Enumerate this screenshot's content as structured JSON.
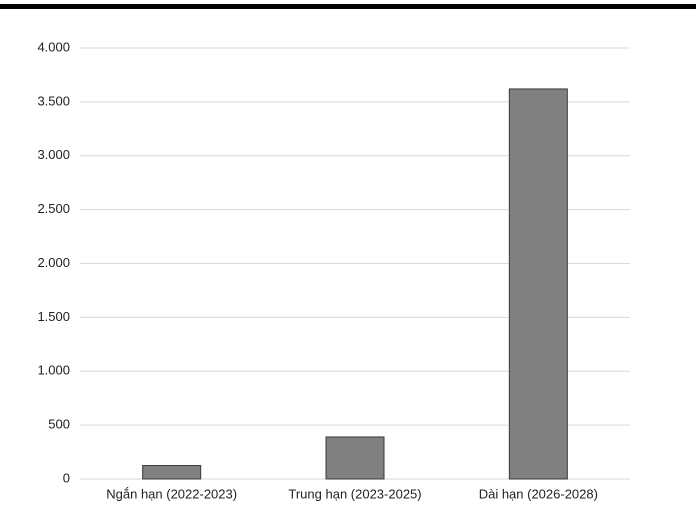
{
  "chart_data": {
    "type": "bar",
    "categories": [
      "Ngắn hạn (2022-2023)",
      "Trung hạn (2023-2025)",
      "Dài hạn (2026-2028)"
    ],
    "values": [
      125,
      390,
      3620
    ],
    "color": "#808080",
    "ylim": [
      0,
      4000
    ],
    "yticks": [
      0,
      500,
      {
        "value": 1000,
        "label": "1.000"
      },
      {
        "value": 1500,
        "label": "1.500"
      },
      {
        "value": 2000,
        "label": "2.000"
      },
      {
        "value": 2500,
        "label": "2.500"
      },
      {
        "value": 3000,
        "label": "3.000"
      },
      {
        "value": 3500,
        "label": "3.500"
      },
      {
        "value": 4000,
        "label": "4.000"
      }
    ],
    "grid": true
  }
}
